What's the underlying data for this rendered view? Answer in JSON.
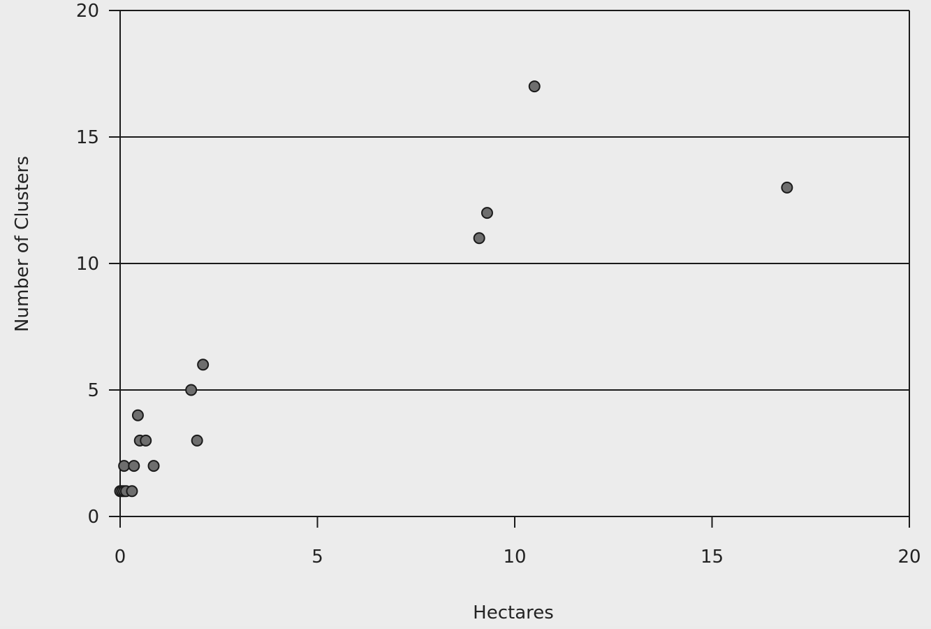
{
  "chart_data": {
    "type": "scatter",
    "title": "",
    "xlabel": "Hectares",
    "ylabel": "Number of Clusters",
    "xlim": [
      0,
      20
    ],
    "ylim": [
      0,
      20
    ],
    "x_ticks": [
      "0",
      "5",
      "10",
      "15",
      "20"
    ],
    "y_ticks": [
      "0",
      "5",
      "10",
      "15",
      "20"
    ],
    "grid": "horizontal",
    "legend": "none",
    "marker_color": "#6e6e6e",
    "points": [
      {
        "x": 0.0,
        "y": 1
      },
      {
        "x": 0.05,
        "y": 1
      },
      {
        "x": 0.1,
        "y": 1
      },
      {
        "x": 0.15,
        "y": 1
      },
      {
        "x": 0.3,
        "y": 1
      },
      {
        "x": 0.1,
        "y": 2
      },
      {
        "x": 0.35,
        "y": 2
      },
      {
        "x": 0.85,
        "y": 2
      },
      {
        "x": 0.5,
        "y": 3
      },
      {
        "x": 0.65,
        "y": 3
      },
      {
        "x": 0.45,
        "y": 4
      },
      {
        "x": 1.95,
        "y": 3
      },
      {
        "x": 1.8,
        "y": 5
      },
      {
        "x": 2.1,
        "y": 6
      },
      {
        "x": 9.1,
        "y": 11
      },
      {
        "x": 9.3,
        "y": 12
      },
      {
        "x": 10.5,
        "y": 17
      },
      {
        "x": 16.9,
        "y": 13
      }
    ]
  }
}
